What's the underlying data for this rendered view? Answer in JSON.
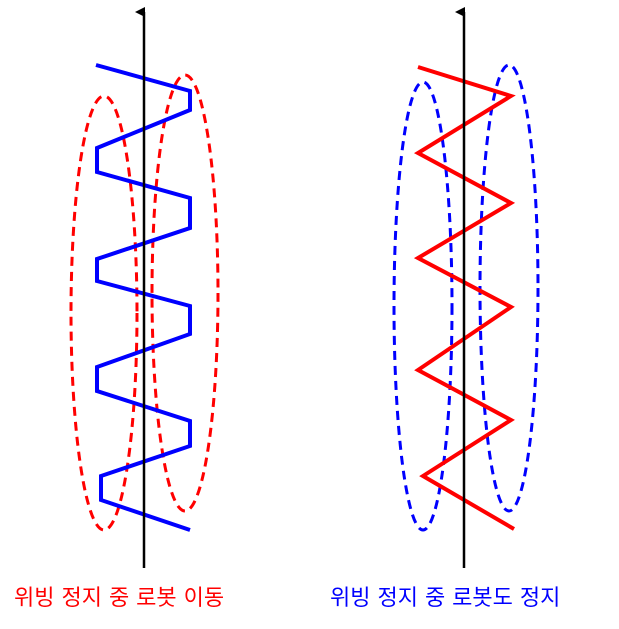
{
  "panels": [
    {
      "caption": "위빙 정지 중 로봇 이동",
      "caption_color": "#ff0000",
      "weave_color": "#0000ff",
      "ellipse_color": "#ff0000",
      "weave_shape": "trapezoidal"
    },
    {
      "caption": "위빙 정지 중 로봇도 정지",
      "caption_color": "#0000ff",
      "weave_color": "#ff0000",
      "ellipse_color": "#0000ff",
      "weave_shape": "triangular"
    }
  ],
  "axis_color": "#000000",
  "weave_cycles": 4,
  "axis_arrow_direction": "up"
}
